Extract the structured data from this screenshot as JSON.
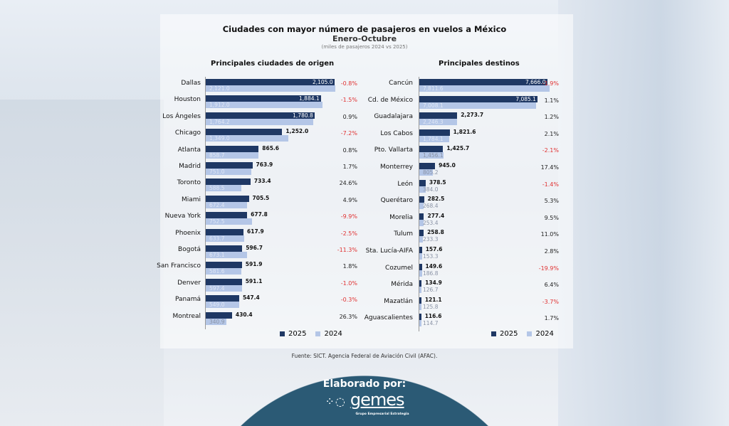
{
  "header": {
    "title": "Ciudades con mayor número de pasajeros en vuelos a México",
    "subtitle": "Enero-Octubre",
    "note": "(miles de pasajeros 2024 vs 2025)"
  },
  "colors": {
    "s2025": "#1f3864",
    "s2024": "#b4c6e7",
    "negative": "#e03131",
    "positive": "#222222"
  },
  "chart_data": [
    {
      "type": "bar",
      "orientation": "horizontal",
      "title": "Principales ciudades de origen",
      "legend": [
        "2025",
        "2024"
      ],
      "categories": [
        "Dallas",
        "Houston",
        "Los Ángeles",
        "Chicago",
        "Atlanta",
        "Madrid",
        "Toronto",
        "Miami",
        "Nueva York",
        "Phoenix",
        "Bogotá",
        "San Francisco",
        "Denver",
        "Panamá",
        "Montreal"
      ],
      "series": [
        {
          "name": "2025",
          "values": [
            2105.0,
            1884.1,
            1780.8,
            1252.0,
            865.6,
            763.9,
            733.4,
            705.5,
            677.8,
            617.9,
            596.7,
            591.9,
            591.1,
            547.4,
            430.4
          ]
        },
        {
          "name": "2024",
          "values": [
            2121.0,
            1912.0,
            1764.2,
            1349.0,
            858.7,
            751.0,
            588.5,
            672.4,
            752.5,
            633.7,
            673.1,
            581.6,
            597.4,
            549.0,
            340.9
          ]
        }
      ],
      "labels_2025": [
        "2,105.0",
        "1,884.1",
        "1,780.8",
        "1,252.0",
        "865.6",
        "763.9",
        "733.4",
        "705.5",
        "677.8",
        "617.9",
        "596.7",
        "591.9",
        "591.1",
        "547.4",
        "430.4"
      ],
      "labels_2024": [
        "2,121.0",
        "1,912.0",
        "1,764.2",
        "1,349.0",
        "858.7",
        "751.0",
        "588.5",
        "672.4",
        "752.5",
        "633.7",
        "673.1",
        "581.6",
        "597.4",
        "549.0",
        "340.9"
      ],
      "change": [
        "-0.8%",
        "-1.5%",
        "0.9%",
        "-7.2%",
        "0.8%",
        "1.7%",
        "24.6%",
        "4.9%",
        "-9.9%",
        "-2.5%",
        "-11.3%",
        "1.8%",
        "-1.0%",
        "-0.3%",
        "26.3%"
      ],
      "xmax": 2121.0
    },
    {
      "type": "bar",
      "orientation": "horizontal",
      "title": "Principales destinos",
      "legend": [
        "2025",
        "2024"
      ],
      "categories": [
        "Cancún",
        "Cd. de México",
        "Guadalajara",
        "Los Cabos",
        "Pto. Vallarta",
        "Monterrey",
        "León",
        "Querétaro",
        "Morelia",
        "Tulum",
        "Sta. Lucía-AIFA",
        "Cozumel",
        "Mérida",
        "Mazatlán",
        "Aguascalientes"
      ],
      "series": [
        {
          "name": "2025",
          "values": [
            7666.0,
            7085.1,
            2273.7,
            1821.6,
            1425.7,
            945.0,
            378.5,
            282.5,
            277.4,
            258.8,
            157.6,
            149.6,
            134.9,
            121.1,
            116.6
          ]
        },
        {
          "name": "2024",
          "values": [
            7811.6,
            7008.1,
            2246.3,
            1784.1,
            1456.1,
            805.2,
            384.0,
            268.4,
            253.4,
            233.3,
            153.3,
            186.8,
            126.7,
            125.8,
            114.7
          ]
        }
      ],
      "labels_2025": [
        "7,666.0",
        "7,085.1",
        "2,273.7",
        "1,821.6",
        "1,425.7",
        "945.0",
        "378.5",
        "282.5",
        "277.4",
        "258.8",
        "157.6",
        "149.6",
        "134.9",
        "121.1",
        "116.6"
      ],
      "labels_2024": [
        "7,811.6",
        "7,008.1",
        "2,246.3",
        "1,784.1",
        "1,456.1",
        "805.2",
        "384.0",
        "268.4",
        "253.4",
        "233.3",
        "153.3",
        "186.8",
        "126.7",
        "125.8",
        "114.7"
      ],
      "change": [
        "-1.9%",
        "1.1%",
        "1.2%",
        "2.1%",
        "-2.1%",
        "17.4%",
        "-1.4%",
        "5.3%",
        "9.5%",
        "11.0%",
        "2.8%",
        "-19.9%",
        "6.4%",
        "-3.7%",
        "1.7%"
      ],
      "xmax": 7811.6
    }
  ],
  "footer": {
    "source": "Fuente: SICT. Agencia Federal de Aviación Civil (AFAC).",
    "made_by": "Elaborado por:",
    "logo_text": "gemes",
    "logo_tagline": "Grupo Empresarial Estrategia"
  }
}
